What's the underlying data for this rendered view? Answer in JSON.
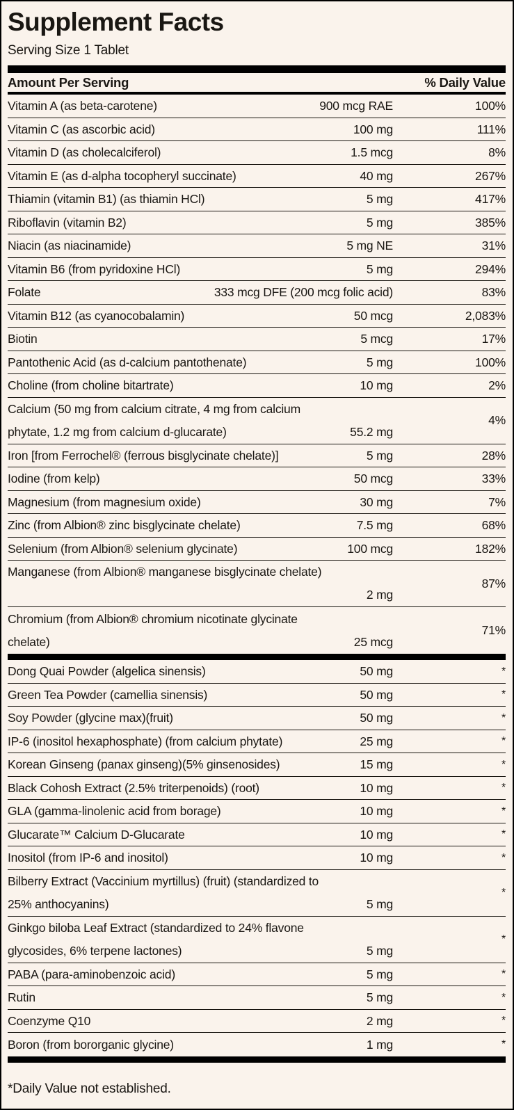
{
  "panel": {
    "title": "Supplement Facts",
    "serving_size": "Serving Size 1 Tablet",
    "columns": {
      "amount_header": "Amount Per Serving",
      "dv_header": "% Daily Value"
    },
    "footnote": "*Daily Value not established.",
    "colors": {
      "background": "#faf3ec",
      "text": "#1a1713",
      "rule": "#000000"
    },
    "sections": [
      {
        "id": "vitamins-minerals",
        "rows": [
          {
            "name": "Vitamin A (as beta-carotene)",
            "amount": "900 mcg RAE",
            "dv": "100%"
          },
          {
            "name": "Vitamin C (as ascorbic acid)",
            "amount": "100 mg",
            "dv": "111%"
          },
          {
            "name": "Vitamin D (as cholecalciferol)",
            "amount": "1.5 mcg",
            "dv": "8%"
          },
          {
            "name": "Vitamin E (as d-alpha tocopheryl succinate)",
            "amount": "40 mg",
            "dv": "267%"
          },
          {
            "name": "Thiamin (vitamin B1) (as thiamin HCl)",
            "amount": "5 mg",
            "dv": "417%"
          },
          {
            "name": "Riboflavin (vitamin B2)",
            "amount": "5 mg",
            "dv": "385%"
          },
          {
            "name": "Niacin (as niacinamide)",
            "amount": "5 mg NE",
            "dv": "31%"
          },
          {
            "name": "Vitamin B6 (from pyridoxine HCl)",
            "amount": "5 mg",
            "dv": "294%"
          },
          {
            "name": "Folate",
            "amount": "333 mcg DFE (200 mcg folic acid)",
            "dv": "83%"
          },
          {
            "name": "Vitamin B12 (as cyanocobalamin)",
            "amount": "50 mcg",
            "dv": "2,083%"
          },
          {
            "name": "Biotin",
            "amount": "5 mcg",
            "dv": "17%"
          },
          {
            "name": "Pantothenic Acid (as d-calcium pantothenate)",
            "amount": "5 mg",
            "dv": "100%"
          },
          {
            "name": "Choline (from choline bitartrate)",
            "amount": "10 mg",
            "dv": "2%"
          },
          {
            "name": "Calcium (50 mg from calcium citrate, 4 mg from calcium phytate, 1.2 mg from calcium d-glucarate)",
            "lines": [
              "Calcium (50 mg from calcium citrate, 4 mg from calcium",
              "phytate, 1.2 mg from calcium d-glucarate)"
            ],
            "amount": "55.2 mg",
            "dv": "4%"
          },
          {
            "name": "Iron [from Ferrochel® (ferrous bisglycinate chelate)]",
            "amount": "5 mg",
            "dv": "28%"
          },
          {
            "name": "Iodine (from kelp)",
            "amount": "50 mcg",
            "dv": "33%"
          },
          {
            "name": "Magnesium (from magnesium oxide)",
            "amount": "30 mg",
            "dv": "7%"
          },
          {
            "name": "Zinc (from Albion® zinc bisglycinate chelate)",
            "amount": "7.5 mg",
            "dv": "68%"
          },
          {
            "name": "Selenium (from Albion® selenium glycinate)",
            "amount": "100 mcg",
            "dv": "182%"
          },
          {
            "name": "Manganese (from Albion® manganese bisglycinate chelate)",
            "lines": [
              "Manganese (from Albion® manganese bisglycinate chelate)",
              ""
            ],
            "amount": "2 mg",
            "dv": "87%"
          },
          {
            "name": "Chromium (from Albion® chromium nicotinate glycinate chelate)",
            "lines": [
              "Chromium (from Albion® chromium nicotinate glycinate",
              "chelate)"
            ],
            "amount": "25 mcg",
            "dv": "71%"
          }
        ]
      },
      {
        "id": "botanicals",
        "rows": [
          {
            "name": "Dong Quai Powder (algelica sinensis)",
            "amount": "50 mg",
            "dv": "*"
          },
          {
            "name": "Green Tea Powder (camellia sinensis)",
            "amount": "50 mg",
            "dv": "*"
          },
          {
            "name": "Soy Powder (glycine max)(fruit)",
            "amount": "50 mg",
            "dv": "*"
          },
          {
            "name": "IP-6 (inositol hexaphosphate) (from calcium phytate)",
            "amount": "25 mg",
            "dv": "*"
          },
          {
            "name": "Korean Ginseng (panax ginseng)(5% ginsenosides)",
            "amount": "15 mg",
            "dv": "*"
          },
          {
            "name": "Black Cohosh Extract (2.5% triterpenoids) (root)",
            "amount": "10 mg",
            "dv": "*"
          },
          {
            "name": "GLA (gamma-linolenic acid from borage)",
            "amount": "10 mg",
            "dv": "*"
          },
          {
            "name": "Glucarate™ Calcium D-Glucarate",
            "amount": "10 mg",
            "dv": "*"
          },
          {
            "name": "Inositol (from IP-6 and inositol)",
            "amount": "10 mg",
            "dv": "*"
          },
          {
            "name": "Bilberry Extract (Vaccinium myrtillus) (fruit) (standardized to 25% anthocyanins)",
            "lines": [
              "Bilberry Extract (Vaccinium myrtillus) (fruit) (standardized to",
              "25% anthocyanins)"
            ],
            "amount": "5 mg",
            "dv": "*"
          },
          {
            "name": "Ginkgo biloba Leaf Extract (standardized to 24% flavone glycosides, 6% terpene lactones)",
            "lines": [
              "Ginkgo biloba Leaf Extract (standardized to 24% flavone",
              "glycosides, 6% terpene lactones)"
            ],
            "amount": "5 mg",
            "dv": "*"
          },
          {
            "name": "PABA (para-aminobenzoic acid)",
            "amount": "5 mg",
            "dv": "*"
          },
          {
            "name": "Rutin",
            "amount": "5 mg",
            "dv": "*"
          },
          {
            "name": "Coenzyme Q10",
            "amount": "2 mg",
            "dv": "*"
          },
          {
            "name": "Boron (from bororganic glycine)",
            "amount": "1 mg",
            "dv": "*"
          }
        ]
      }
    ]
  }
}
